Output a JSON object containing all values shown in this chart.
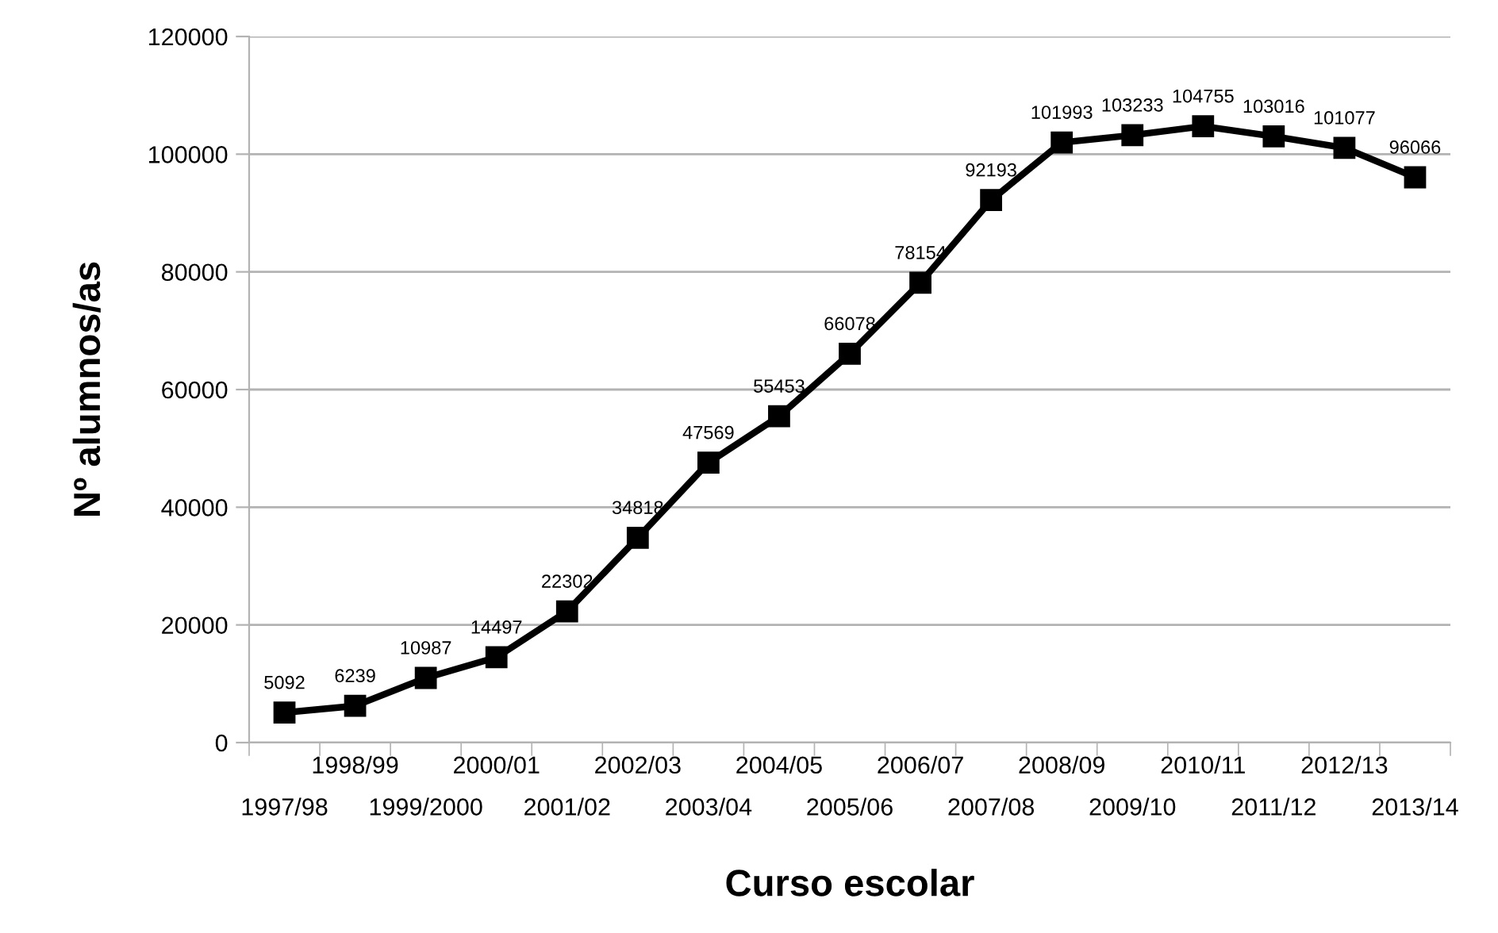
{
  "chart_data": {
    "type": "line",
    "xlabel": "Curso escolar",
    "ylabel": "Nº alumnos/as",
    "categories": [
      "1997/98",
      "1998/99",
      "1999/2000",
      "2000/01",
      "2001/02",
      "2002/03",
      "2003/04",
      "2004/05",
      "2005/06",
      "2006/07",
      "2007/08",
      "2008/09",
      "2009/10",
      "2010/11",
      "2011/12",
      "2012/13",
      "2013/14"
    ],
    "series": [
      {
        "color": "#000000",
        "values": [
          5092,
          6239,
          10987,
          14497,
          22302,
          34818,
          47569,
          55453,
          66078,
          78154,
          92193,
          101993,
          103233,
          104755,
          103016,
          101077,
          96066
        ]
      }
    ],
    "ylim": [
      0,
      120000
    ],
    "yticks": [
      0,
      20000,
      40000,
      60000,
      80000,
      100000,
      120000
    ],
    "grid": "y",
    "marker": "square",
    "line_style": "solid",
    "data_labels": true,
    "legend": false
  }
}
